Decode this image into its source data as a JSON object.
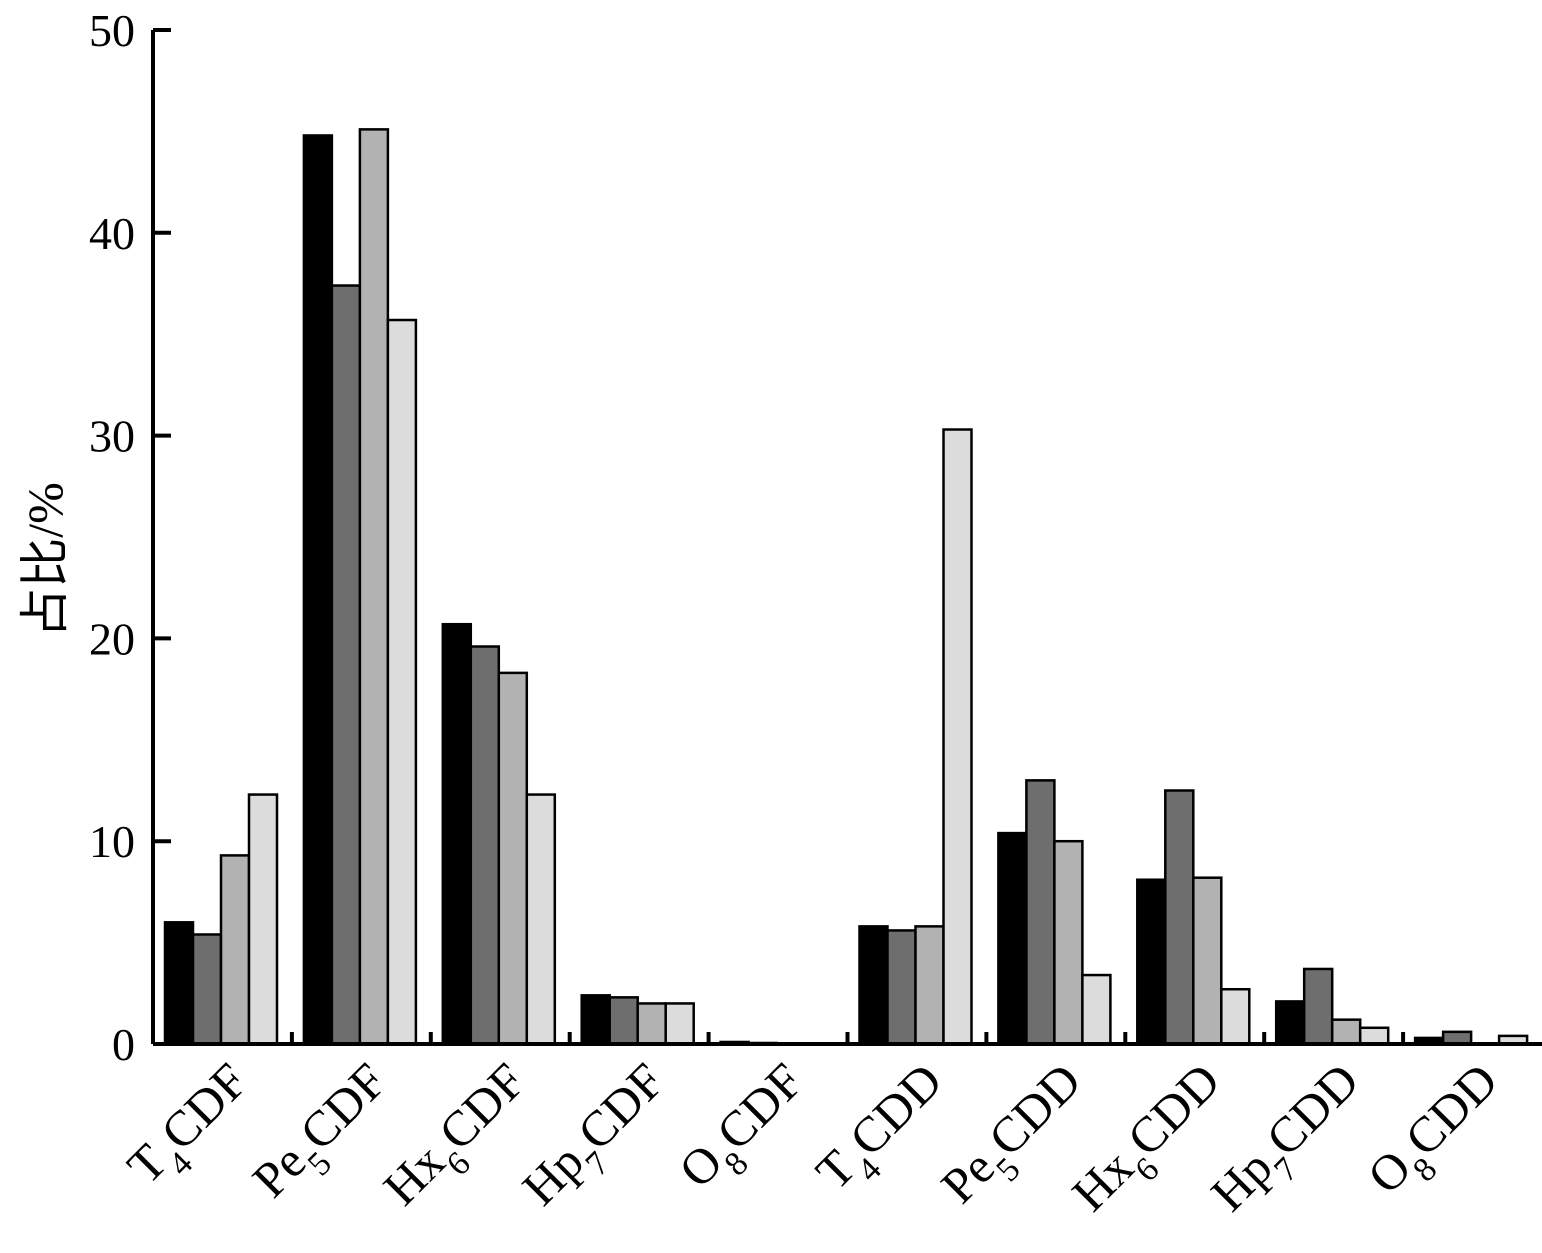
{
  "chart_data": {
    "type": "bar",
    "title": "",
    "xlabel": "",
    "ylabel": "占比/%",
    "ylim": [
      0,
      50
    ],
    "yticks": [
      0,
      10,
      20,
      30,
      40,
      50
    ],
    "grid": false,
    "legend": "none",
    "categories": [
      "T4CDF",
      "Pe5CDF",
      "Hx6CDF",
      "Hp7CDF",
      "O8CDF",
      "T4CDD",
      "Pe5CDD",
      "Hx6CDD",
      "Hp7CDD",
      "O8CDD"
    ],
    "series": [
      {
        "color": "#000000",
        "values": [
          6.0,
          44.8,
          20.7,
          2.4,
          0.1,
          5.8,
          10.4,
          8.1,
          2.1,
          0.3
        ]
      },
      {
        "color": "#6e6e6e",
        "values": [
          5.4,
          37.4,
          19.6,
          2.3,
          0.05,
          5.6,
          13.0,
          12.5,
          3.7,
          0.6
        ]
      },
      {
        "color": "#b2b2b2",
        "values": [
          9.3,
          45.1,
          18.3,
          2.0,
          0,
          5.8,
          10.0,
          8.2,
          1.2,
          0
        ]
      },
      {
        "color": "#dcdcdc",
        "values": [
          12.3,
          35.7,
          12.3,
          2.0,
          0,
          30.3,
          3.4,
          2.7,
          0.8,
          0.4
        ]
      }
    ]
  }
}
